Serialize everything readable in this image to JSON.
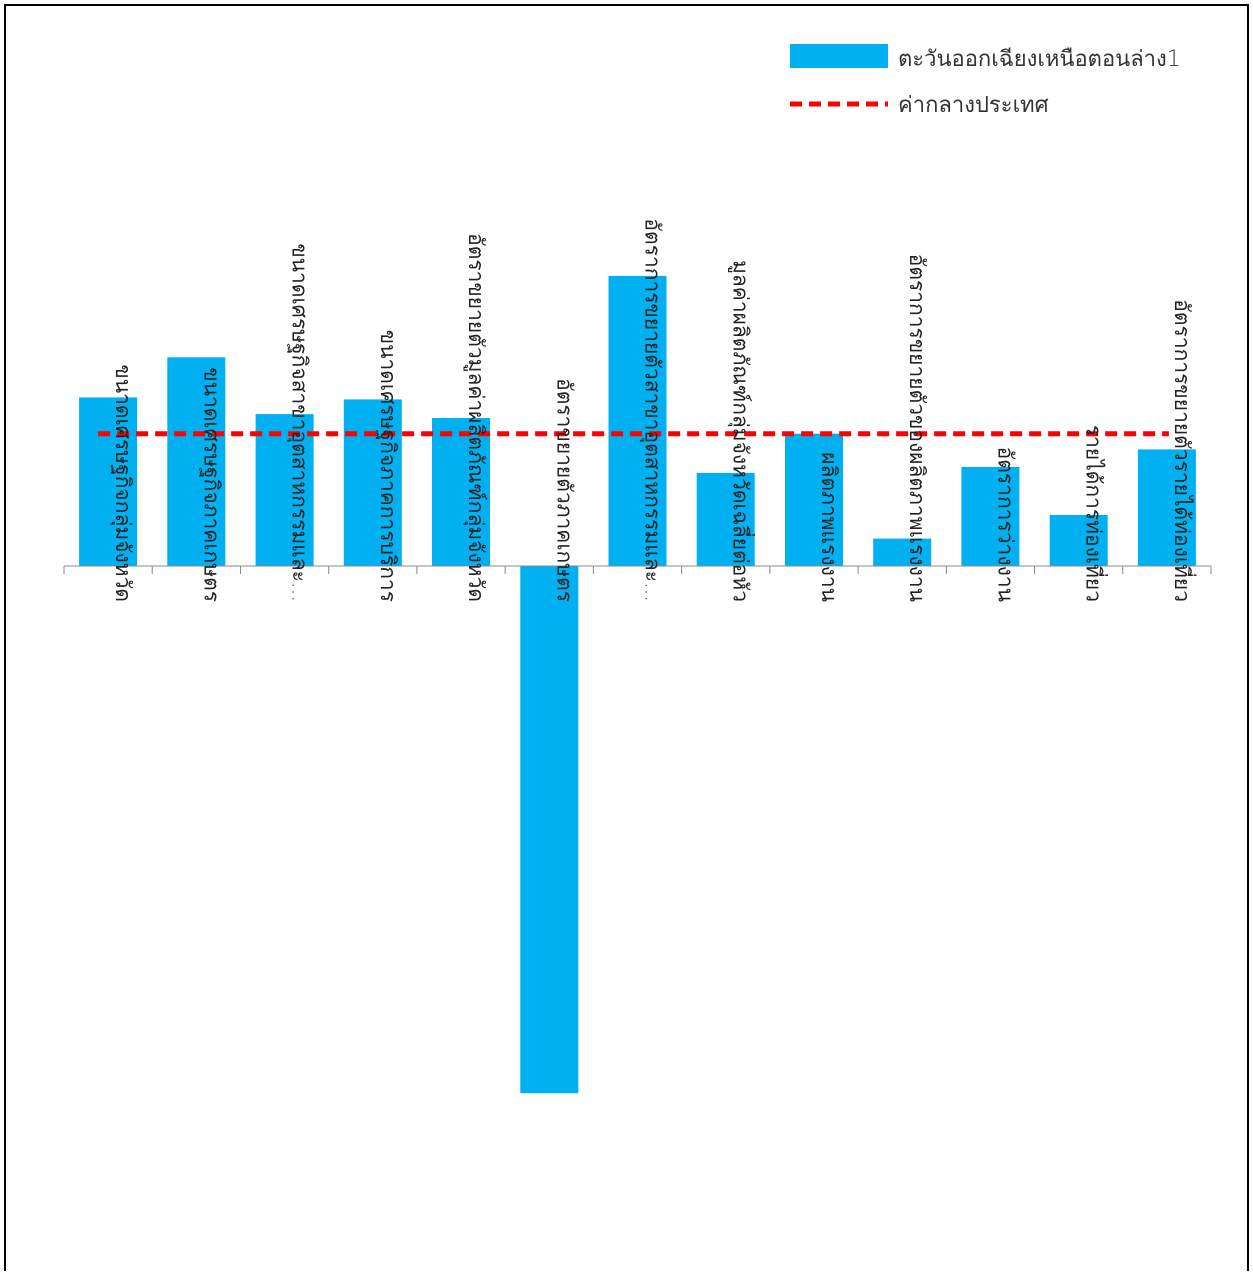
{
  "chart_data": {
    "type": "bar",
    "categories": [
      "ขนาดเศรษฐกิจกลุ่มจังหวัด",
      "ขนาดเศรษฐกิจภาคเกษตร",
      "ขนาดเศรษฐกิจสาขาอุตสาหกรรมและ...",
      "ขนาดเศรษฐกิจภาคการบริการ",
      "อัตราขยายตัวมูลค่าผลิตภัณฑ์กลุ่มจังหวัด",
      "อัตราขยายตัวภาคเกษตร",
      "อัตราการขยายตัวสาขาอุตสาหกรรมและ...",
      "มูลค่าผลิตภัณฑ์กลุ่มจังหวัดเฉลี่ยต่อหัว",
      "ผลิตภาพแรงงาน",
      "อัตราการขยายตัวของผลิตภาพแรงงาน",
      "อัตราการว่างงาน",
      "รายได้การท่องเที่ยว",
      "อัตราการขยายตัวรายได้ท่องเที่ยว"
    ],
    "series": [
      {
        "name": "ตะวันออกเฉียงเหนือตอนล่าง1",
        "type": "bar",
        "color": "#00B0F0",
        "values": [
          1.72,
          2.13,
          1.55,
          1.7,
          1.51,
          -5.38,
          2.96,
          0.95,
          1.35,
          0.28,
          1.01,
          0.52,
          1.19
        ]
      },
      {
        "name": "ค่ากลางประเทศ",
        "type": "line",
        "style": "dashed",
        "color": "#FF0000",
        "values": [
          1.35,
          1.35,
          1.35,
          1.35,
          1.35,
          1.35,
          1.35,
          1.35,
          1.35,
          1.35,
          1.35,
          1.35,
          1.35
        ]
      }
    ],
    "ylim": [
      -7.0,
      5.5
    ],
    "highlighted_category": "อัตราขยายตัวภาคเกษตร",
    "legend_position": "top-right",
    "grid": false
  }
}
